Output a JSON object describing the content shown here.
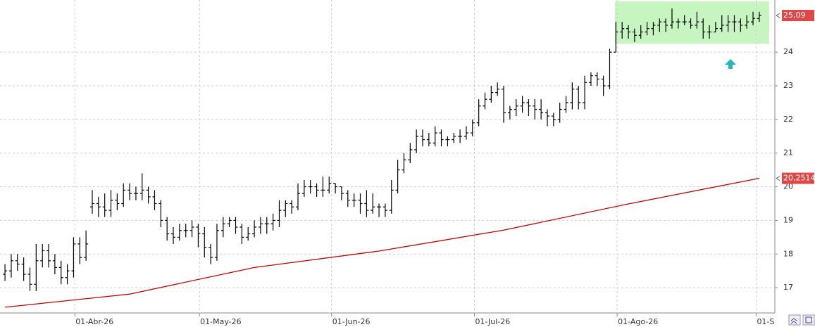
{
  "chart_data": {
    "type": "ohlc",
    "xlim": [
      -0.8,
      123.5
    ],
    "xticks": [
      {
        "value": 11.2,
        "label": "01-Abr-26"
      },
      {
        "value": 31.2,
        "label": "01-May-26"
      },
      {
        "value": 52.4,
        "label": "01-Jun-26"
      },
      {
        "value": 75.3,
        "label": "01-Jul-26"
      },
      {
        "value": 98.2,
        "label": "01-Ago-26"
      },
      {
        "value": 120.5,
        "label": "01-S"
      }
    ],
    "ylim": [
      16.25,
      25.55
    ],
    "yticks": [
      17,
      18,
      19,
      20,
      21,
      22,
      23,
      24
    ],
    "grid": true,
    "series": [
      {
        "color": "#000000",
        "open": [
          17.4,
          17.5,
          17.8,
          17.7,
          17.4,
          17.1,
          17.8,
          18.1,
          17.8,
          17.6,
          17.3,
          17.5,
          18.3,
          17.9,
          19.4,
          19.5,
          19.4,
          19.3,
          19.6,
          19.5,
          19.9,
          19.8,
          19.8,
          19.9,
          19.7,
          19.5,
          19.0,
          18.6,
          18.5,
          18.7,
          18.7,
          18.8,
          18.6,
          18.2,
          17.9,
          18.7,
          18.9,
          19.0,
          18.8,
          18.5,
          18.6,
          18.8,
          18.9,
          18.9,
          19.0,
          19.3,
          19.5,
          19.4,
          19.8,
          20.0,
          20.0,
          19.9,
          19.9,
          20.1,
          20.0,
          19.8,
          19.6,
          19.6,
          19.5,
          19.3,
          19.4,
          19.4,
          19.3,
          19.9,
          20.5,
          20.8,
          21.1,
          21.5,
          21.4,
          21.3,
          21.6,
          21.4,
          21.4,
          21.5,
          21.5,
          21.6,
          21.9,
          22.4,
          22.6,
          22.8,
          22.9,
          22.2,
          22.3,
          22.4,
          22.5,
          22.4,
          22.3,
          22.2,
          22.1,
          22.0,
          22.3,
          22.5,
          22.9,
          22.5,
          23.1,
          23.3,
          23.2,
          23.0,
          24.0,
          24.6,
          24.7,
          24.6,
          24.5,
          24.6,
          24.7,
          24.8,
          24.9,
          24.8,
          24.9,
          24.9,
          24.9,
          24.8,
          24.9,
          24.6,
          24.6,
          24.7,
          24.8,
          24.9,
          24.9,
          24.8,
          24.9,
          25.0
        ],
        "high": [
          17.7,
          18.0,
          18.0,
          17.9,
          17.6,
          18.3,
          18.3,
          18.3,
          18.0,
          17.8,
          17.7,
          18.5,
          18.5,
          18.7,
          19.9,
          19.7,
          19.8,
          19.9,
          19.8,
          20.1,
          20.1,
          20.0,
          20.4,
          20.0,
          19.9,
          19.6,
          19.1,
          18.8,
          18.9,
          18.9,
          19.0,
          18.9,
          18.8,
          18.3,
          18.9,
          19.1,
          19.1,
          19.1,
          18.9,
          18.8,
          19.0,
          19.1,
          19.1,
          19.2,
          19.6,
          19.6,
          19.6,
          20.1,
          20.2,
          20.2,
          20.1,
          20.3,
          20.3,
          20.1,
          20.0,
          19.9,
          19.8,
          19.8,
          19.9,
          19.8,
          19.5,
          19.5,
          20.2,
          20.8,
          21.0,
          21.3,
          21.7,
          21.7,
          21.6,
          21.8,
          21.7,
          21.5,
          21.6,
          21.7,
          21.8,
          22.0,
          22.6,
          22.8,
          23.0,
          23.1,
          23.0,
          22.4,
          22.6,
          22.7,
          22.6,
          22.6,
          22.6,
          22.3,
          22.2,
          22.5,
          22.7,
          23.1,
          23.0,
          23.3,
          23.4,
          23.4,
          23.3,
          24.1,
          24.9,
          24.9,
          24.8,
          24.7,
          24.8,
          24.9,
          24.9,
          25.0,
          25.0,
          25.3,
          25.0,
          25.1,
          25.0,
          25.2,
          25.0,
          24.8,
          24.9,
          25.1,
          25.1,
          25.1,
          25.0,
          25.1,
          25.2,
          25.2
        ],
        "low": [
          17.2,
          17.3,
          17.5,
          17.2,
          16.9,
          16.9,
          17.6,
          17.6,
          17.4,
          17.1,
          17.1,
          17.3,
          17.7,
          17.8,
          19.2,
          19.1,
          19.1,
          19.1,
          19.3,
          19.4,
          19.6,
          19.6,
          19.6,
          19.5,
          19.3,
          18.8,
          18.4,
          18.3,
          18.4,
          18.5,
          18.5,
          18.2,
          17.9,
          17.7,
          17.8,
          18.5,
          18.8,
          18.6,
          18.3,
          18.4,
          18.5,
          18.6,
          18.6,
          18.7,
          18.8,
          19.1,
          19.2,
          19.3,
          19.7,
          19.8,
          19.7,
          19.7,
          19.8,
          19.8,
          19.6,
          19.4,
          19.4,
          19.2,
          19.1,
          19.2,
          19.1,
          19.1,
          19.2,
          19.8,
          20.4,
          20.7,
          21.0,
          21.2,
          21.2,
          21.2,
          21.2,
          21.2,
          21.3,
          21.3,
          21.4,
          21.5,
          21.8,
          22.3,
          22.5,
          22.7,
          21.9,
          22.0,
          22.1,
          22.2,
          22.1,
          22.0,
          22.0,
          21.8,
          21.8,
          21.9,
          22.2,
          22.3,
          22.3,
          22.3,
          23.0,
          23.0,
          22.7,
          22.9,
          24.0,
          24.4,
          24.4,
          24.3,
          24.4,
          24.5,
          24.5,
          24.6,
          24.6,
          24.7,
          24.7,
          24.8,
          24.7,
          24.7,
          24.4,
          24.4,
          24.6,
          24.6,
          24.6,
          24.6,
          24.6,
          24.7,
          24.8,
          24.9
        ],
        "close": [
          17.5,
          17.8,
          17.7,
          17.4,
          17.1,
          17.8,
          18.1,
          17.8,
          17.6,
          17.3,
          17.5,
          18.3,
          17.9,
          18.3,
          19.5,
          19.4,
          19.3,
          19.6,
          19.5,
          19.9,
          19.8,
          19.8,
          19.9,
          19.7,
          19.5,
          19.0,
          18.6,
          18.5,
          18.7,
          18.7,
          18.8,
          18.6,
          18.2,
          17.9,
          18.7,
          18.9,
          19.0,
          18.8,
          18.5,
          18.6,
          18.8,
          18.9,
          18.9,
          19.0,
          19.3,
          19.5,
          19.4,
          19.8,
          20.0,
          20.0,
          19.9,
          19.9,
          20.1,
          20.0,
          19.8,
          19.6,
          19.6,
          19.5,
          19.3,
          19.4,
          19.4,
          19.3,
          19.9,
          20.5,
          20.8,
          21.1,
          21.5,
          21.4,
          21.3,
          21.6,
          21.4,
          21.4,
          21.5,
          21.5,
          21.6,
          21.9,
          22.4,
          22.6,
          22.8,
          22.9,
          22.2,
          22.3,
          22.4,
          22.5,
          22.4,
          22.3,
          22.2,
          22.1,
          22.0,
          22.3,
          22.5,
          22.9,
          22.5,
          23.1,
          23.3,
          23.2,
          23.0,
          24.0,
          24.6,
          24.7,
          24.6,
          24.5,
          24.6,
          24.7,
          24.8,
          24.9,
          24.8,
          24.9,
          24.9,
          24.9,
          24.8,
          24.9,
          24.6,
          24.6,
          24.7,
          24.8,
          24.9,
          24.9,
          24.8,
          24.9,
          25.0,
          25.09
        ]
      }
    ],
    "moving_average": {
      "color": "#cc0000",
      "x": [
        0,
        20,
        40,
        60,
        80,
        100,
        121
      ],
      "values": [
        16.42,
        16.81,
        17.6,
        18.09,
        18.71,
        19.49,
        20.2514
      ]
    },
    "last_price": {
      "value": 25.09,
      "label": "25,09"
    },
    "ma_label": {
      "value": 20.2514,
      "label": "20,2514"
    }
  }
}
